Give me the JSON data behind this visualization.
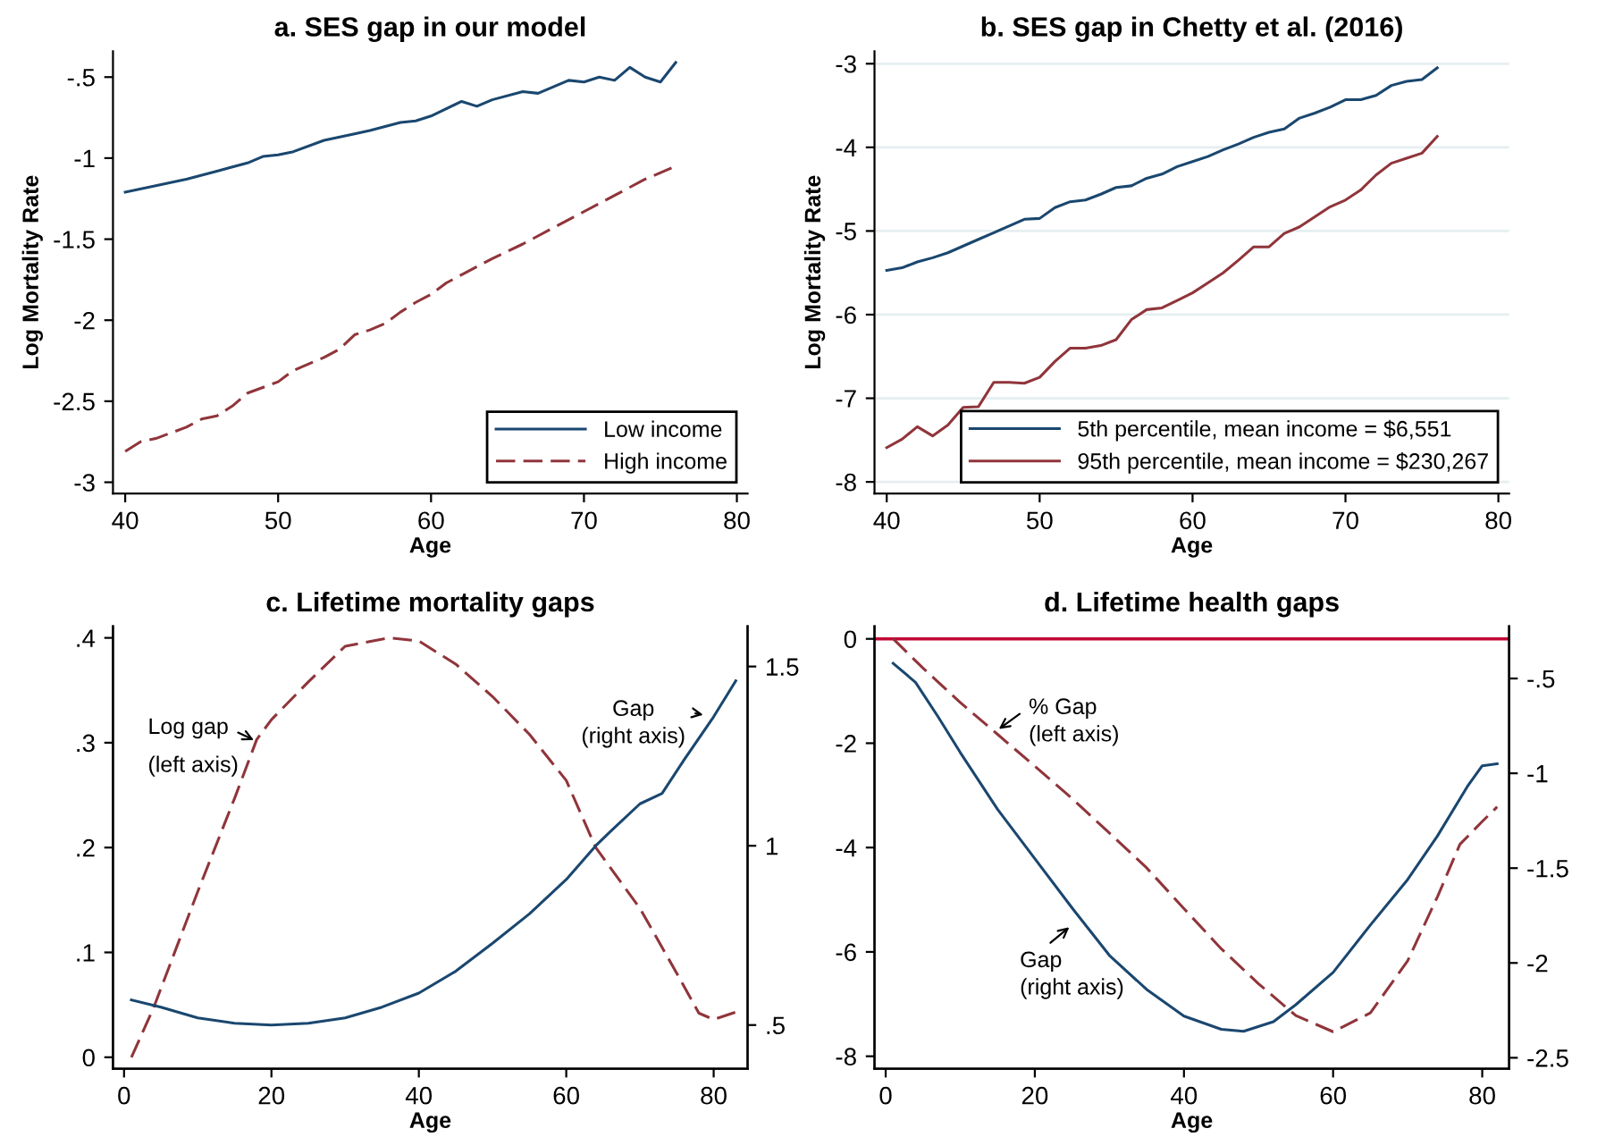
{
  "chart_data": [
    {
      "type": "line",
      "title": "a. SES gap in our model",
      "xlabel": "Age",
      "ylabel": "Log Mortality Rate",
      "xlim": [
        39.2,
        80.7
      ],
      "xticks": [
        40,
        50,
        60,
        70,
        80
      ],
      "ylim": [
        -3.07,
        -0.34
      ],
      "yticks": [
        {
          "value": -3,
          "label": "-3"
        },
        {
          "value": -2.5,
          "label": "-2.5"
        },
        {
          "value": -2,
          "label": "-2"
        },
        {
          "value": -1.5,
          "label": "-1.5"
        },
        {
          "value": -1,
          "label": "-1"
        },
        {
          "value": -0.5,
          "label": "-.5"
        }
      ],
      "grid": false,
      "legend": "bottom right",
      "series": [
        {
          "name": "Low income",
          "color": "#1a476f",
          "line_style": "solid",
          "x": [
            40,
            42,
            44,
            46,
            48,
            49,
            50,
            51,
            53,
            55,
            56,
            58,
            59,
            60,
            62,
            63,
            64,
            66,
            67,
            69,
            70,
            71,
            72,
            73,
            74,
            75,
            76
          ],
          "values": [
            -1.21,
            -1.17,
            -1.13,
            -1.08,
            -1.03,
            -0.99,
            -0.98,
            -0.96,
            -0.89,
            -0.85,
            -0.83,
            -0.78,
            -0.77,
            -0.74,
            -0.65,
            -0.68,
            -0.64,
            -0.59,
            -0.6,
            -0.52,
            -0.53,
            -0.5,
            -0.52,
            -0.44,
            -0.5,
            -0.53,
            -0.41
          ]
        },
        {
          "name": "High income",
          "color": "#90353b",
          "line_style": "dashed",
          "x": [
            40,
            41,
            42,
            44,
            45,
            46,
            47,
            48,
            50,
            51,
            53,
            54,
            55,
            56,
            57,
            58,
            59,
            60,
            61,
            62,
            64,
            66,
            68,
            70,
            72,
            74,
            76
          ],
          "values": [
            -2.81,
            -2.75,
            -2.73,
            -2.66,
            -2.61,
            -2.59,
            -2.53,
            -2.45,
            -2.38,
            -2.31,
            -2.23,
            -2.18,
            -2.09,
            -2.06,
            -2.02,
            -1.95,
            -1.89,
            -1.84,
            -1.77,
            -1.72,
            -1.62,
            -1.53,
            -1.43,
            -1.33,
            -1.23,
            -1.13,
            -1.05
          ]
        }
      ]
    },
    {
      "type": "line",
      "title": "b. SES gap in Chetty et al. (2016)",
      "xlabel": "Age",
      "ylabel": "Log Mortality Rate",
      "xlim": [
        39.2,
        80.7
      ],
      "xticks": [
        40,
        50,
        60,
        70,
        80
      ],
      "ylim": [
        -8.14,
        -2.85
      ],
      "yticks": [
        -8,
        -7,
        -6,
        -5,
        -4,
        -3
      ],
      "grid": "y",
      "legend": "bottom right",
      "series": [
        {
          "name": "5th percentile, mean income = $6,551",
          "color": "#1a476f",
          "line_style": "solid",
          "x": [
            40,
            41,
            42,
            43,
            44,
            45,
            46,
            47,
            48,
            49,
            50,
            51,
            52,
            53,
            54,
            55,
            56,
            57,
            58,
            59,
            60,
            61,
            62,
            63,
            64,
            65,
            66,
            67,
            68,
            69,
            70,
            71,
            72,
            73,
            74,
            75,
            76
          ],
          "values": [
            -5.47,
            -5.44,
            -5.37,
            -5.32,
            -5.26,
            -5.18,
            -5.1,
            -5.02,
            -4.94,
            -4.86,
            -4.85,
            -4.72,
            -4.65,
            -4.63,
            -4.56,
            -4.48,
            -4.46,
            -4.37,
            -4.32,
            -4.23,
            -4.17,
            -4.11,
            -4.03,
            -3.96,
            -3.88,
            -3.82,
            -3.78,
            -3.65,
            -3.59,
            -3.52,
            -3.43,
            -3.43,
            -3.38,
            -3.26,
            -3.21,
            -3.19,
            -3.05
          ]
        },
        {
          "name": "95th percentile, mean income = $230,267",
          "color": "#90353b",
          "line_style": "solid",
          "x": [
            40,
            41,
            42,
            43,
            44,
            45,
            46,
            47,
            48,
            49,
            50,
            51,
            52,
            53,
            54,
            55,
            56,
            57,
            58,
            59,
            60,
            61,
            62,
            63,
            64,
            65,
            66,
            67,
            68,
            69,
            70,
            71,
            72,
            73,
            74,
            75,
            76
          ],
          "values": [
            -7.59,
            -7.49,
            -7.34,
            -7.45,
            -7.32,
            -7.11,
            -7.1,
            -6.81,
            -6.81,
            -6.82,
            -6.75,
            -6.56,
            -6.4,
            -6.4,
            -6.37,
            -6.3,
            -6.06,
            -5.94,
            -5.92,
            -5.83,
            -5.74,
            -5.62,
            -5.5,
            -5.35,
            -5.19,
            -5.19,
            -5.03,
            -4.95,
            -4.83,
            -4.71,
            -4.63,
            -4.51,
            -4.33,
            -4.19,
            -4.13,
            -4.07,
            -3.87
          ]
        }
      ]
    },
    {
      "type": "line",
      "title": "c. Lifetime mortality gaps",
      "xlabel": "Age",
      "xlim": [
        -1.5,
        84.6
      ],
      "xticks": [
        0,
        20,
        40,
        60,
        80
      ],
      "ylim": [
        -0.011,
        0.411
      ],
      "yticks": [
        0,
        {
          "value": 0.1,
          "label": ".1"
        },
        {
          "value": 0.2,
          "label": ".2"
        },
        {
          "value": 0.3,
          "label": ".3"
        },
        {
          "value": 0.4,
          "label": ".4"
        }
      ],
      "y2lim": [
        0.378,
        1.612
      ],
      "y2ticks": [
        {
          "value": 0.5,
          "label": ".5"
        },
        1,
        {
          "value": 1.5,
          "label": "1.5"
        }
      ],
      "grid": false,
      "legend": false,
      "annotations": [
        "Log gap",
        "(left axis)",
        "Gap\n(right axis)"
      ],
      "series": [
        {
          "color": "#90353b",
          "line_style": "dashed",
          "x": [
            1,
            4,
            10,
            15,
            18,
            20,
            25,
            30,
            36,
            40,
            45,
            50,
            55,
            60,
            64,
            70,
            75,
            78,
            80,
            83
          ],
          "values": [
            0,
            0.047,
            0.158,
            0.247,
            0.303,
            0.322,
            0.358,
            0.392,
            0.4,
            0.397,
            0.375,
            0.344,
            0.308,
            0.264,
            0.2,
            0.142,
            0.08,
            0.042,
            0.036,
            0.043
          ]
        },
        {
          "color": "#1a476f",
          "line_style": "solid",
          "axis": "y2",
          "x": [
            1,
            5,
            10,
            15,
            20,
            25,
            30,
            35,
            40,
            45,
            50,
            55,
            60,
            64,
            66,
            70,
            73,
            76,
            80,
            83
          ],
          "values": [
            0.57,
            0.55,
            0.52,
            0.505,
            0.5,
            0.505,
            0.52,
            0.55,
            0.589,
            0.65,
            0.728,
            0.81,
            0.906,
            1.0,
            1.04,
            1.117,
            1.146,
            1.24,
            1.36,
            1.46
          ]
        }
      ]
    },
    {
      "type": "line",
      "title": "d. Lifetime health gaps",
      "xlabel": "Age",
      "xlim": [
        -1.5,
        83.6
      ],
      "xticks": [
        0,
        20,
        40,
        60,
        80
      ],
      "ylim": [
        -8.24,
        0.24
      ],
      "yticks": [
        -8,
        -6,
        -4,
        -2,
        0
      ],
      "y2lim": [
        -2.558,
        -0.225
      ],
      "y2ticks": [
        {
          "value": -2.5,
          "label": "-2.5"
        },
        {
          "value": -2,
          "label": "-2"
        },
        {
          "value": -1.5,
          "label": "-1.5"
        },
        {
          "value": -1,
          "label": "-1"
        },
        {
          "value": -0.5,
          "label": "-.5"
        }
      ],
      "grid": false,
      "legend": false,
      "ref_lines": [
        {
          "axis": "y",
          "value": 0,
          "color": "#c10534",
          "line_style": "solid"
        }
      ],
      "annotations": [
        "% Gap\n(left axis)",
        "Gap\n(right axis)"
      ],
      "series": [
        {
          "color": "#90353b",
          "line_style": "dashed",
          "x": [
            1,
            5,
            10,
            15,
            20,
            25,
            30,
            35,
            40,
            45,
            50,
            55,
            60,
            65,
            70,
            74,
            77,
            80,
            82
          ],
          "values": [
            0,
            -0.56,
            -1.22,
            -1.83,
            -2.44,
            -3.06,
            -3.72,
            -4.39,
            -5.17,
            -5.94,
            -6.61,
            -7.22,
            -7.53,
            -7.17,
            -6.17,
            -4.94,
            -3.94,
            -3.5,
            -3.22
          ]
        },
        {
          "color": "#1a476f",
          "line_style": "solid",
          "axis": "y2",
          "x": [
            1,
            4,
            7,
            10,
            15,
            20,
            25,
            30,
            35,
            40,
            45,
            48,
            52,
            55,
            60,
            65,
            70,
            74,
            78,
            80,
            82
          ],
          "values": [
            -0.42,
            -0.52,
            -0.7,
            -0.89,
            -1.19,
            -1.45,
            -1.71,
            -1.96,
            -2.14,
            -2.28,
            -2.35,
            -2.36,
            -2.31,
            -2.22,
            -2.05,
            -1.8,
            -1.56,
            -1.33,
            -1.07,
            -0.96,
            -0.95
          ]
        }
      ]
    }
  ]
}
